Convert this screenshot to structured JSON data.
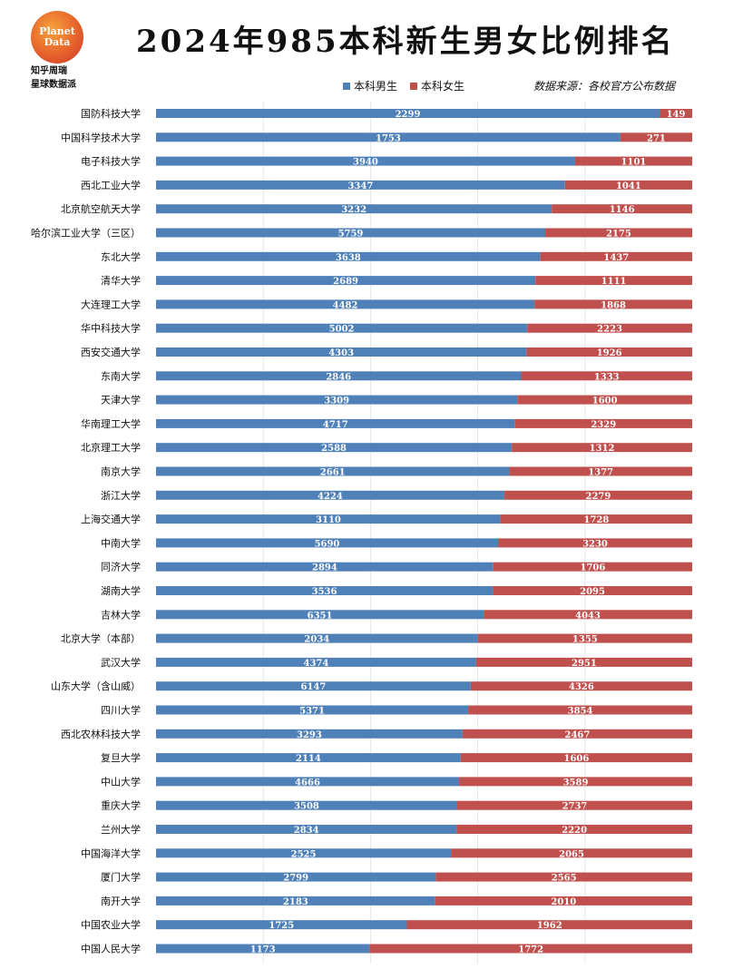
{
  "title": "2024年985本科新生男女比例排名",
  "logo": {
    "line1": "Planet",
    "line2": "Data",
    "sub1": "知乎周瑞",
    "sub2": "星球数据派"
  },
  "source": "数据来源：各校官方公布数据",
  "colors": {
    "male": "#4f81b8",
    "female": "#c0504d"
  },
  "chart_data": {
    "type": "bar",
    "orientation": "horizontal",
    "stacked": "percent",
    "title": "2024年985本科新生男女比例排名",
    "legend": "top",
    "grid": true,
    "categories": [
      "国防科技大学",
      "中国科学技术大学",
      "电子科技大学",
      "西北工业大学",
      "北京航空航天大学",
      "哈尔滨工业大学（三区）",
      "东北大学",
      "清华大学",
      "大连理工大学",
      "华中科技大学",
      "西安交通大学",
      "东南大学",
      "天津大学",
      "华南理工大学",
      "北京理工大学",
      "南京大学",
      "浙江大学",
      "上海交通大学",
      "中南大学",
      "同济大学",
      "湖南大学",
      "吉林大学",
      "北京大学（本部）",
      "武汉大学",
      "山东大学（含山威）",
      "四川大学",
      "西北农林科技大学",
      "复旦大学",
      "中山大学",
      "重庆大学",
      "兰州大学",
      "中国海洋大学",
      "厦门大学",
      "南开大学",
      "中国农业大学",
      "中国人民大学"
    ],
    "series": [
      {
        "name": "本科男生",
        "values": [
          2299,
          1753,
          3940,
          3347,
          3232,
          5759,
          3638,
          2689,
          4482,
          5002,
          4303,
          2846,
          3309,
          4717,
          2588,
          2661,
          4224,
          3110,
          5690,
          2894,
          3536,
          6351,
          2034,
          4374,
          6147,
          5371,
          3293,
          2114,
          4666,
          3508,
          2834,
          2525,
          2799,
          2183,
          1725,
          1173
        ]
      },
      {
        "name": "本科女生",
        "values": [
          149,
          271,
          1101,
          1041,
          1146,
          2175,
          1437,
          1111,
          1868,
          2223,
          1926,
          1333,
          1600,
          2329,
          1312,
          1377,
          2279,
          1728,
          3230,
          1706,
          2095,
          4043,
          1355,
          2951,
          4326,
          3854,
          2467,
          1606,
          3589,
          2737,
          2220,
          2065,
          2565,
          2010,
          1962,
          1772
        ]
      }
    ]
  }
}
